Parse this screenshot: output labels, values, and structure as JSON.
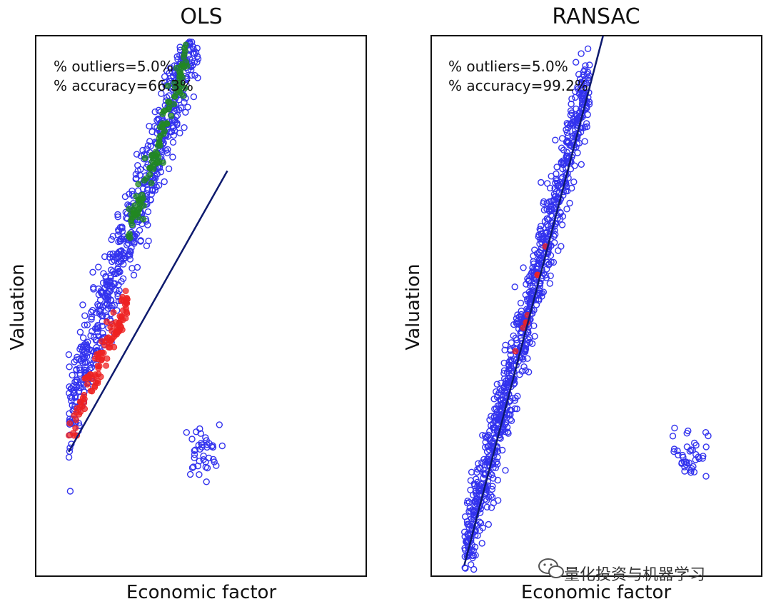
{
  "chart_data": [
    {
      "type": "scatter",
      "title": "OLS",
      "xlabel": "Economic factor",
      "ylabel": "Valuation",
      "grid": false,
      "xlim": [
        0,
        10
      ],
      "ylim": [
        0,
        10
      ],
      "annotations": [
        "% outliers=5.0%",
        "% accuracy=66.3%"
      ],
      "fit_line": {
        "x": [
          1.0,
          5.8
        ],
        "y": [
          2.3,
          7.5
        ],
        "color": "#0d1a6e"
      },
      "main_cluster": {
        "color": "#3333ee",
        "marker": "open-circle",
        "count": 720,
        "x_range": [
          1.0,
          5.0
        ],
        "slope": 1.85,
        "intercept": 1.1
      },
      "outlier_cluster": {
        "color": "#3333ee",
        "marker": "open-circle",
        "count": 40,
        "center": [
          5.0,
          2.3
        ],
        "spread": [
          0.5,
          0.45
        ]
      },
      "highlight_low": {
        "color": "#ee2222",
        "marker": "filled-circle",
        "count": 110,
        "x_range": [
          1.0,
          2.8
        ],
        "slope": 1.4,
        "intercept": 1.2
      },
      "highlight_high": {
        "color": "#228822",
        "marker": "filled-circle",
        "count": 110,
        "x_range": [
          2.8,
          4.6
        ],
        "slope": 1.9,
        "intercept": 1.0
      }
    },
    {
      "type": "scatter",
      "title": "RANSAC",
      "xlabel": "Economic factor",
      "ylabel": "Valuation",
      "grid": false,
      "xlim": [
        0,
        10
      ],
      "ylim": [
        0,
        10
      ],
      "annotations": [
        "% outliers=5.0%",
        "% accuracy=99.2%"
      ],
      "fit_line": {
        "x": [
          1.0,
          5.2
        ],
        "y": [
          0.2,
          10.0
        ],
        "color": "#0d1a6e"
      },
      "main_cluster": {
        "color": "#3333ee",
        "marker": "open-circle",
        "count": 900,
        "x_range": [
          1.0,
          4.8
        ],
        "slope": 2.35,
        "intercept": -2.0
      },
      "outlier_cluster": {
        "color": "#3333ee",
        "marker": "open-circle",
        "count": 40,
        "center": [
          7.8,
          2.3
        ],
        "spread": [
          0.5,
          0.45
        ]
      },
      "highlight_mid": {
        "color": "#ee2222",
        "marker": "filled-circle",
        "count": 8,
        "x_range": [
          2.3,
          3.5
        ],
        "slope": 2.35,
        "intercept": -2.0
      }
    }
  ],
  "watermark": {
    "text": "量化投资与机器学习",
    "icon": "wechat-icon"
  }
}
